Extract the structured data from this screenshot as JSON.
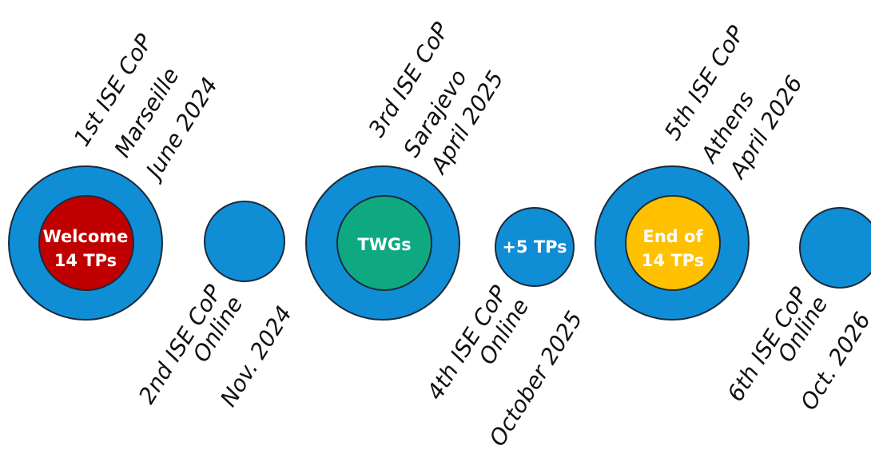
{
  "events": [
    {
      "id": "cop1",
      "kind": "major",
      "inner_text": [
        "Welcome",
        "14 TPs"
      ],
      "labels": [
        "1st ISE CoP",
        "Marseille",
        "June 2024"
      ]
    },
    {
      "id": "cop2",
      "kind": "minor",
      "inner_text": [],
      "labels": [
        "2nd ISE CoP",
        "Online",
        "Nov. 2024"
      ]
    },
    {
      "id": "cop3",
      "kind": "major",
      "inner_text": [
        "TWGs"
      ],
      "labels": [
        "3rd ISE CoP",
        "Sarajevo",
        "April 2025"
      ]
    },
    {
      "id": "cop4",
      "kind": "minor",
      "inner_text": [
        "+5 TPs"
      ],
      "labels": [
        "4th ISE CoP",
        "Online",
        "October 2025"
      ]
    },
    {
      "id": "cop5",
      "kind": "major",
      "inner_text": [
        "End of",
        "14 TPs"
      ],
      "labels": [
        "5th ISE CoP",
        "Athens",
        "April 2026"
      ]
    },
    {
      "id": "cop6",
      "kind": "minor",
      "inner_text": [],
      "labels": [
        "6th ISE CoP",
        "Online",
        "Oct. 2026"
      ]
    }
  ],
  "colors": {
    "outer_blue": "#0f8ed6",
    "welcome_red": "#c00000",
    "twgs_green": "#0fa981",
    "end_yellow": "#ffc000",
    "outline": "#1a2a3a"
  }
}
